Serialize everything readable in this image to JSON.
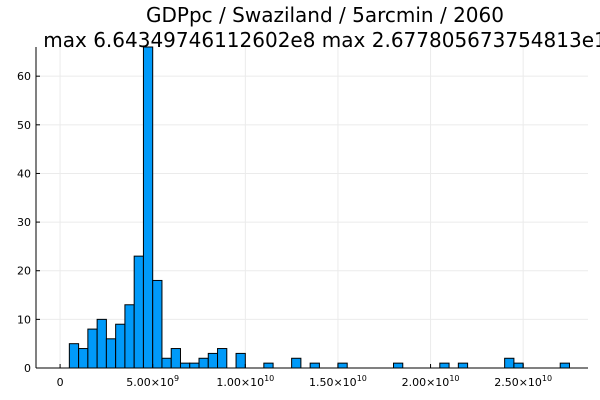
{
  "chart_data": {
    "type": "bar",
    "title": "GDPpc / Swaziland / 5arcmin / 2060",
    "subtitle": "max 6.64349746112602e8  max 2.677805673754813e1",
    "xlabel": "",
    "ylabel": "",
    "xlim": [
      -1300000000.0,
      28500000000.0
    ],
    "ylim": [
      0,
      66
    ],
    "grid": true,
    "legend": "none",
    "bin_width": 500000000.0,
    "x_ticks": [
      {
        "value": 0,
        "mantissa": "0",
        "exponent": ""
      },
      {
        "value": 5000000000.0,
        "mantissa": "5.00×10",
        "exponent": "9"
      },
      {
        "value": 10000000000.0,
        "mantissa": "1.00×10",
        "exponent": "10"
      },
      {
        "value": 15000000000.0,
        "mantissa": "1.50×10",
        "exponent": "10"
      },
      {
        "value": 20000000000.0,
        "mantissa": "2.00×10",
        "exponent": "10"
      },
      {
        "value": 25000000000.0,
        "mantissa": "2.50×10",
        "exponent": "10"
      }
    ],
    "y_ticks": [
      0,
      10,
      20,
      30,
      40,
      50,
      60
    ],
    "bins": [
      {
        "x": 500000000.0,
        "count": 5
      },
      {
        "x": 1000000000.0,
        "count": 4
      },
      {
        "x": 1500000000.0,
        "count": 8
      },
      {
        "x": 2000000000.0,
        "count": 10
      },
      {
        "x": 2500000000.0,
        "count": 6
      },
      {
        "x": 3000000000.0,
        "count": 9
      },
      {
        "x": 3500000000.0,
        "count": 13
      },
      {
        "x": 4000000000.0,
        "count": 23
      },
      {
        "x": 4500000000.0,
        "count": 66
      },
      {
        "x": 5000000000.0,
        "count": 18
      },
      {
        "x": 5500000000.0,
        "count": 2
      },
      {
        "x": 6000000000.0,
        "count": 4
      },
      {
        "x": 6500000000.0,
        "count": 1
      },
      {
        "x": 7000000000.0,
        "count": 1
      },
      {
        "x": 7500000000.0,
        "count": 2
      },
      {
        "x": 8000000000.0,
        "count": 3
      },
      {
        "x": 8500000000.0,
        "count": 4
      },
      {
        "x": 9500000000.0,
        "count": 3
      },
      {
        "x": 11000000000.0,
        "count": 1
      },
      {
        "x": 12500000000.0,
        "count": 2
      },
      {
        "x": 13500000000.0,
        "count": 1
      },
      {
        "x": 15000000000.0,
        "count": 1
      },
      {
        "x": 18000000000.0,
        "count": 1
      },
      {
        "x": 20500000000.0,
        "count": 1
      },
      {
        "x": 21500000000.0,
        "count": 1
      },
      {
        "x": 24000000000.0,
        "count": 2
      },
      {
        "x": 24500000000.0,
        "count": 1
      },
      {
        "x": 27000000000.0,
        "count": 1
      }
    ],
    "colors": {
      "bar": "#009af9",
      "bar_edge": "#000000",
      "axis": "#000000",
      "grid": "#ebebeb"
    }
  }
}
